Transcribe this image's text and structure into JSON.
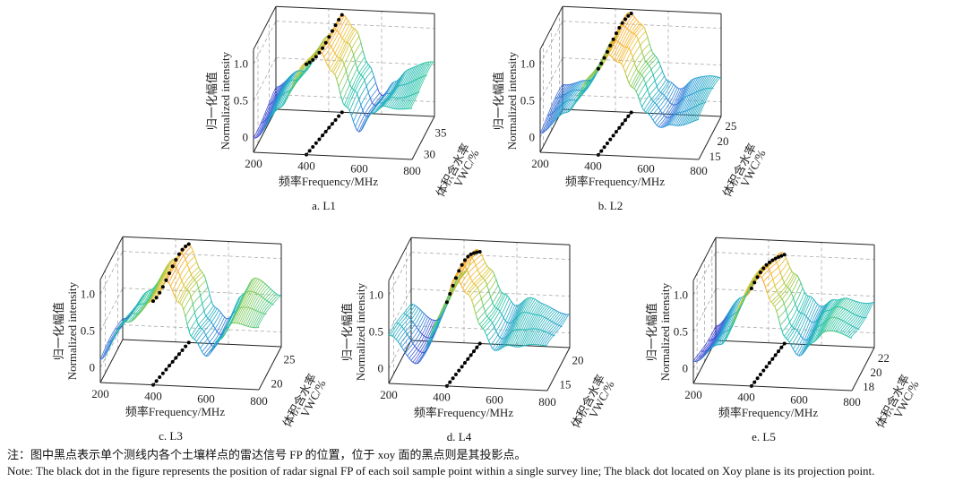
{
  "chart_data": [
    {
      "type": "surface",
      "caption": "a. L1",
      "zlabel_cn": "归一化幅值",
      "zlabel_en": "Normalized intensity",
      "xlabel": "频率Frequency/MHz",
      "ylabel_cn": "体积含水率",
      "ylabel_en": "VWC/%",
      "xlim": [
        200,
        800
      ],
      "xticks": [
        200,
        400,
        600,
        800
      ],
      "ylim": [
        28,
        38
      ],
      "yticks": [
        30,
        35
      ],
      "zlim": [
        -0.2,
        1.2
      ],
      "zticks": [
        "0",
        "0.5",
        "1.0"
      ],
      "frequency": [
        200,
        300,
        400,
        450,
        500,
        550,
        600,
        650,
        700,
        800
      ],
      "intensity": [
        0.05,
        0.4,
        1.0,
        1.25,
        1.0,
        0.5,
        0.1,
        0.35,
        0.5,
        0.55
      ],
      "peak_frequency": [
        400,
        450
      ]
    },
    {
      "type": "surface",
      "caption": "b. L2",
      "zlabel_cn": "归一化幅值",
      "zlabel_en": "Normalized intensity",
      "xlabel": "频率Frequency/MHz",
      "ylabel_cn": "体积含水率",
      "ylabel_en": "VWC/%",
      "xlim": [
        200,
        800
      ],
      "xticks": [
        200,
        400,
        600,
        800
      ],
      "ylim": [
        13,
        27
      ],
      "yticks": [
        15,
        20,
        25
      ],
      "zlim": [
        -0.2,
        1.2
      ],
      "zticks": [
        "0",
        "0.5",
        "1.0"
      ],
      "frequency": [
        200,
        300,
        400,
        450,
        500,
        550,
        600,
        650,
        700,
        800
      ],
      "intensity": [
        0.1,
        0.3,
        0.9,
        1.25,
        1.1,
        0.7,
        0.35,
        0.2,
        0.3,
        0.35
      ],
      "peak_frequency": [
        420,
        460
      ]
    },
    {
      "type": "surface",
      "caption": "c. L3",
      "zlabel_cn": "归一化幅值",
      "zlabel_en": "Normalized intensity",
      "xlabel": "频率Frequency/MHz",
      "ylabel_cn": "体积含水率",
      "ylabel_en": "VWC/%",
      "xlim": [
        200,
        800
      ],
      "xticks": [
        200,
        400,
        600,
        800
      ],
      "ylim": [
        18,
        27
      ],
      "yticks": [
        20,
        25
      ],
      "zlim": [
        -0.2,
        1.2
      ],
      "zticks": [
        "0",
        "0.5",
        "1.0"
      ],
      "frequency": [
        200,
        300,
        400,
        450,
        500,
        550,
        600,
        650,
        700,
        800
      ],
      "intensity": [
        0.1,
        0.6,
        1.0,
        1.25,
        0.9,
        0.4,
        0.2,
        0.5,
        0.75,
        0.6
      ],
      "peak_frequency": [
        400,
        450
      ]
    },
    {
      "type": "surface",
      "caption": "d. L4",
      "zlabel_cn": "归一化幅值",
      "zlabel_en": "Normalized intensity",
      "xlabel": "频率Frequency/MHz",
      "ylabel_cn": "体积含水率",
      "ylabel_en": "VWC/%",
      "xlim": [
        200,
        800
      ],
      "xticks": [
        200,
        400,
        600,
        800
      ],
      "ylim": [
        13,
        22
      ],
      "yticks": [
        15,
        20
      ],
      "zlim": [
        -0.2,
        1.2
      ],
      "zticks": [
        "0",
        "0.5",
        "1.0"
      ],
      "frequency": [
        200,
        300,
        400,
        450,
        500,
        550,
        600,
        650,
        700,
        800
      ],
      "intensity": [
        0.4,
        0.1,
        0.8,
        1.25,
        1.0,
        0.6,
        0.35,
        0.45,
        0.4,
        0.35
      ],
      "peak_frequency": [
        420,
        460
      ]
    },
    {
      "type": "surface",
      "caption": "e. L5",
      "zlabel_cn": "归一化幅值",
      "zlabel_en": "Normalized intensity",
      "xlabel": "频率Frequency/MHz",
      "ylabel_cn": "体积含水率",
      "ylabel_en": "VWC/%",
      "xlim": [
        200,
        800
      ],
      "xticks": [
        200,
        400,
        600,
        800
      ],
      "ylim": [
        17,
        23
      ],
      "yticks": [
        18,
        20,
        22
      ],
      "zlim": [
        -0.2,
        1.2
      ],
      "zticks": [
        "0",
        "0.5",
        "1.0"
      ],
      "frequency": [
        200,
        300,
        400,
        450,
        500,
        550,
        600,
        650,
        700,
        800
      ],
      "intensity": [
        0.05,
        0.4,
        1.0,
        1.25,
        0.9,
        0.5,
        0.3,
        0.45,
        0.55,
        0.5
      ],
      "peak_frequency": [
        420,
        460
      ]
    }
  ],
  "colormap": [
    "#4b3fd6",
    "#2a9bd8",
    "#21c4a8",
    "#8fcc4a",
    "#f5c030",
    "#f59a23"
  ],
  "note_cn": "注：图中黑点表示单个测线内各个土壤样点的雷达信号 FP 的位置，位于 xoy 面的黑点则是其投影点。",
  "note_en": "Note: The black dot in the figure represents the position of radar signal FP of each soil sample point within a single survey line; The black dot located on Xoy plane is its projection point."
}
